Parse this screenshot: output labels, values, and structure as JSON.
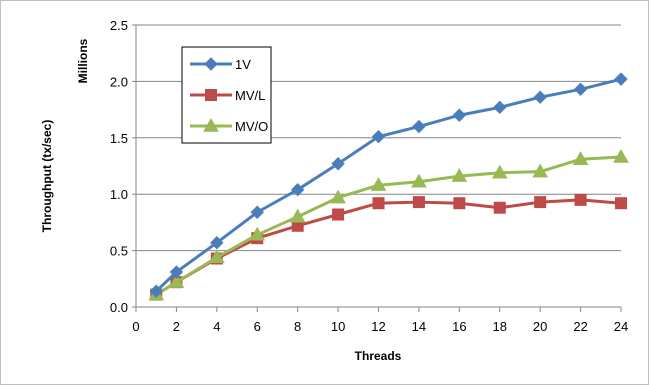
{
  "chart_data": {
    "type": "line",
    "title": "",
    "xlabel": "Threads",
    "ylabel": "Throughput (tx/sec)",
    "yunit_label": "Millions",
    "xlim": [
      0,
      24
    ],
    "ylim": [
      0,
      2.5
    ],
    "x_ticks": [
      "0",
      "2",
      "4",
      "6",
      "8",
      "10",
      "12",
      "14",
      "16",
      "18",
      "20",
      "22",
      "24"
    ],
    "y_ticks": [
      "0.0",
      "0.5",
      "1.0",
      "1.5",
      "2.0",
      "2.5"
    ],
    "grid": "horizontal",
    "legend_position": "top-left",
    "x": [
      1,
      2,
      4,
      6,
      8,
      10,
      12,
      14,
      16,
      18,
      20,
      22,
      24
    ],
    "series": [
      {
        "name": "1V",
        "marker": "diamond",
        "color": "#4a7ebb",
        "values": [
          0.14,
          0.31,
          0.57,
          0.84,
          1.04,
          1.27,
          1.51,
          1.6,
          1.7,
          1.77,
          1.86,
          1.93,
          2.02
        ]
      },
      {
        "name": "MV/L",
        "marker": "square",
        "color": "#be4b48",
        "values": [
          0.11,
          0.22,
          0.43,
          0.61,
          0.72,
          0.82,
          0.92,
          0.93,
          0.92,
          0.88,
          0.93,
          0.95,
          0.92
        ]
      },
      {
        "name": "MV/O",
        "marker": "triangle",
        "color": "#98b954",
        "values": [
          0.11,
          0.22,
          0.44,
          0.64,
          0.8,
          0.97,
          1.08,
          1.11,
          1.16,
          1.19,
          1.2,
          1.31,
          1.33
        ]
      }
    ]
  }
}
